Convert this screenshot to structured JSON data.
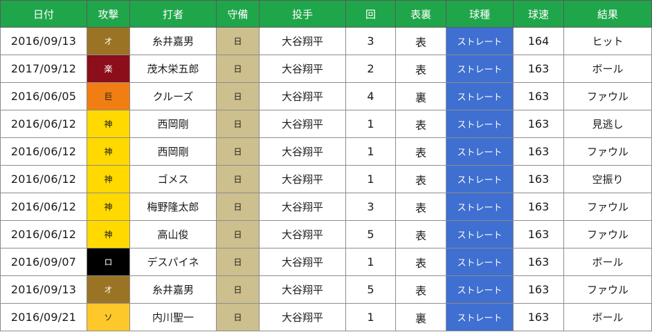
{
  "headers": {
    "date": "日付",
    "attack": "攻撃",
    "batter": "打者",
    "defense": "守備",
    "pitcher": "投手",
    "inning": "回",
    "half": "表裏",
    "pitch_type": "球種",
    "speed": "球速",
    "result": "結果"
  },
  "colors": {
    "header_bg": "#1fa64a",
    "defense_bg": "#cdbf8e",
    "pitch_type_bg": "#3f6fd0",
    "team_オ": "#9a7424",
    "team_楽": "#8b0e1a",
    "team_巨": "#f07e12",
    "team_神": "#ffd900",
    "team_ロ": "#000000",
    "team_ソ": "#fec82a"
  },
  "rows": [
    {
      "date": "2016/09/13",
      "team": "オ",
      "batter": "糸井嘉男",
      "defense": "日",
      "pitcher": "大谷翔平",
      "inning": "3",
      "half": "表",
      "pitch_type": "ストレート",
      "speed": "164",
      "result": "ヒット"
    },
    {
      "date": "2017/09/12",
      "team": "楽",
      "batter": "茂木栄五郎",
      "defense": "日",
      "pitcher": "大谷翔平",
      "inning": "2",
      "half": "表",
      "pitch_type": "ストレート",
      "speed": "163",
      "result": "ボール"
    },
    {
      "date": "2016/06/05",
      "team": "巨",
      "batter": "クルーズ",
      "defense": "日",
      "pitcher": "大谷翔平",
      "inning": "4",
      "half": "裏",
      "pitch_type": "ストレート",
      "speed": "163",
      "result": "ファウル"
    },
    {
      "date": "2016/06/12",
      "team": "神",
      "batter": "西岡剛",
      "defense": "日",
      "pitcher": "大谷翔平",
      "inning": "1",
      "half": "表",
      "pitch_type": "ストレート",
      "speed": "163",
      "result": "見逃し"
    },
    {
      "date": "2016/06/12",
      "team": "神",
      "batter": "西岡剛",
      "defense": "日",
      "pitcher": "大谷翔平",
      "inning": "1",
      "half": "表",
      "pitch_type": "ストレート",
      "speed": "163",
      "result": "ファウル"
    },
    {
      "date": "2016/06/12",
      "team": "神",
      "batter": "ゴメス",
      "defense": "日",
      "pitcher": "大谷翔平",
      "inning": "1",
      "half": "表",
      "pitch_type": "ストレート",
      "speed": "163",
      "result": "空振り"
    },
    {
      "date": "2016/06/12",
      "team": "神",
      "batter": "梅野隆太郎",
      "defense": "日",
      "pitcher": "大谷翔平",
      "inning": "3",
      "half": "表",
      "pitch_type": "ストレート",
      "speed": "163",
      "result": "ファウル"
    },
    {
      "date": "2016/06/12",
      "team": "神",
      "batter": "高山俊",
      "defense": "日",
      "pitcher": "大谷翔平",
      "inning": "5",
      "half": "表",
      "pitch_type": "ストレート",
      "speed": "163",
      "result": "ファウル"
    },
    {
      "date": "2016/09/07",
      "team": "ロ",
      "batter": "デスパイネ",
      "defense": "日",
      "pitcher": "大谷翔平",
      "inning": "1",
      "half": "表",
      "pitch_type": "ストレート",
      "speed": "163",
      "result": "ボール"
    },
    {
      "date": "2016/09/13",
      "team": "オ",
      "batter": "糸井嘉男",
      "defense": "日",
      "pitcher": "大谷翔平",
      "inning": "5",
      "half": "表",
      "pitch_type": "ストレート",
      "speed": "163",
      "result": "ファウル"
    },
    {
      "date": "2016/09/21",
      "team": "ソ",
      "batter": "内川聖一",
      "defense": "日",
      "pitcher": "大谷翔平",
      "inning": "1",
      "half": "裏",
      "pitch_type": "ストレート",
      "speed": "163",
      "result": "ボール"
    }
  ]
}
